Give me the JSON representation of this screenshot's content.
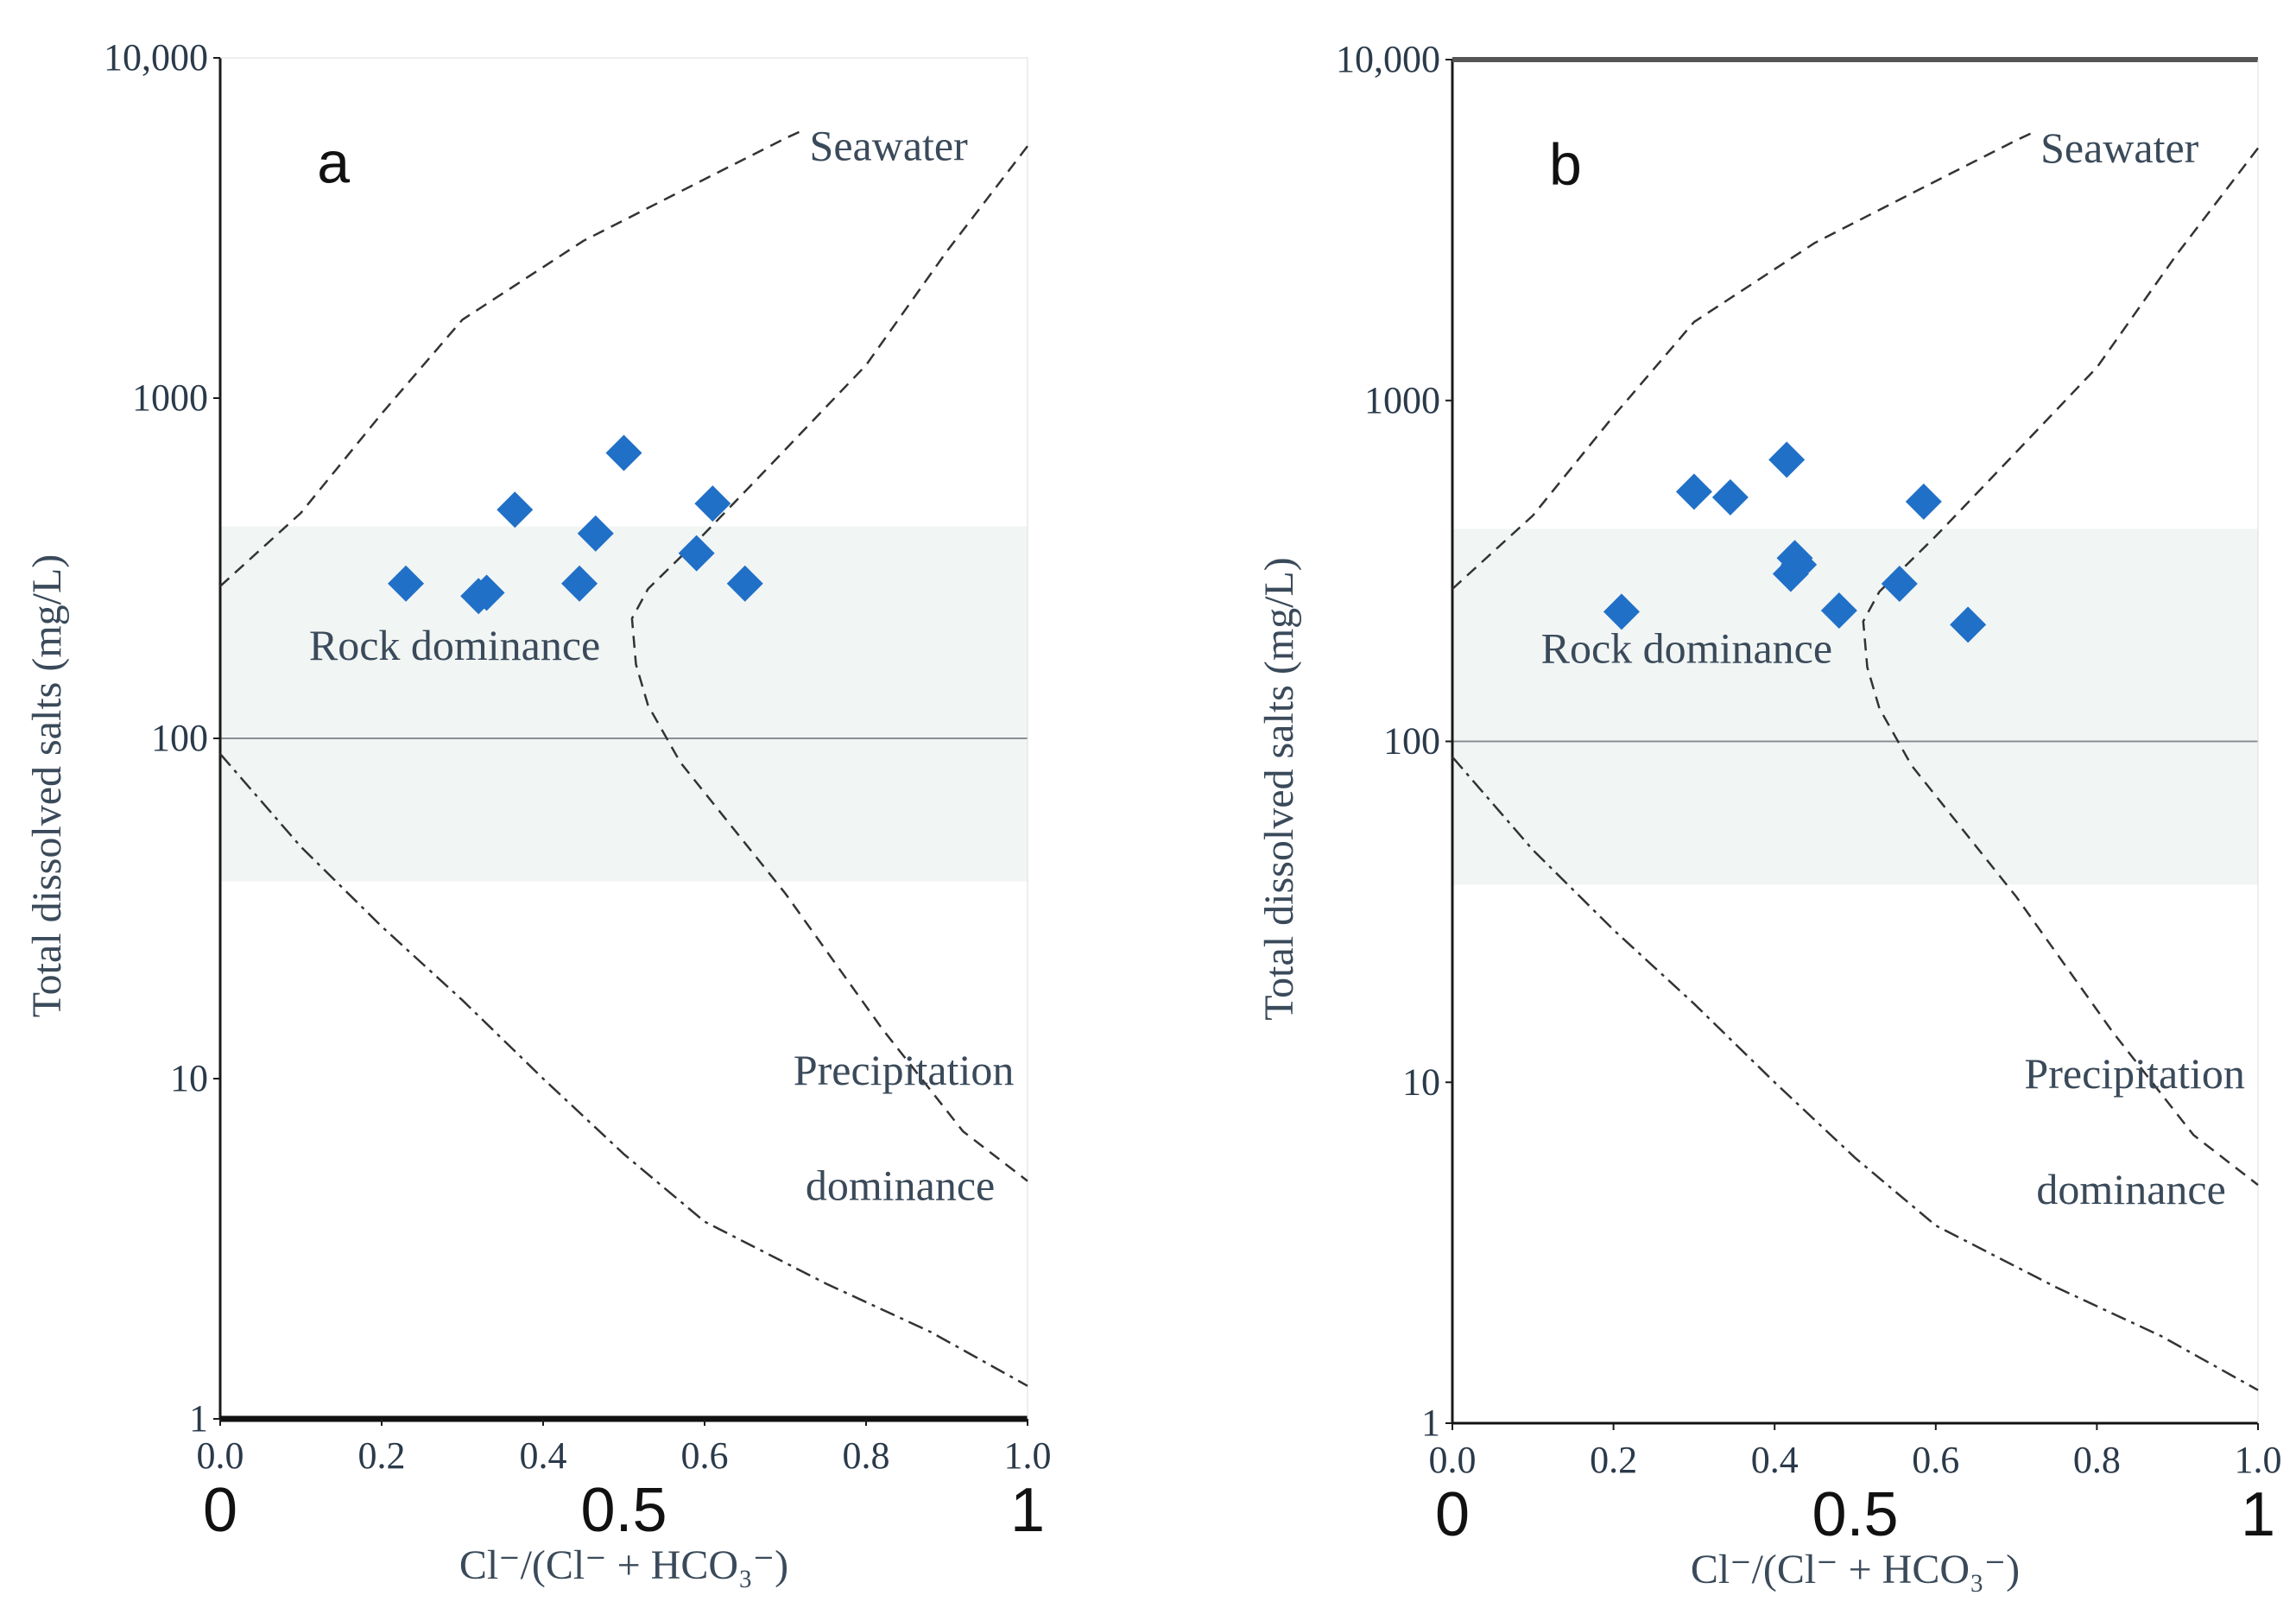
{
  "chart_data": [
    {
      "type": "scatter",
      "panel_label": "a",
      "xlabel": "Cl⁻/(Cl⁻ + HCO₃⁻)",
      "ylabel": "Total dissolved salts (mg/L)",
      "xlim": [
        0,
        1
      ],
      "ylim": [
        1,
        10000
      ],
      "yscale": "log",
      "x_ticks": [
        "0.0",
        "0.2",
        "0.4",
        "0.6",
        "0.8",
        "1.0"
      ],
      "y_ticks": [
        "1",
        "10",
        "100",
        "1000",
        "10,000"
      ],
      "overlay_x_labels": [
        "0",
        "0.5",
        "1"
      ],
      "regions": [
        "Seawater",
        "Rock dominance",
        "Precipitation dominance"
      ],
      "marker_color": "#2070c8",
      "series": [
        {
          "name": "samples",
          "points": [
            {
              "x": 0.23,
              "y": 285
            },
            {
              "x": 0.32,
              "y": 262
            },
            {
              "x": 0.33,
              "y": 268
            },
            {
              "x": 0.365,
              "y": 470
            },
            {
              "x": 0.445,
              "y": 285
            },
            {
              "x": 0.465,
              "y": 400
            },
            {
              "x": 0.5,
              "y": 690
            },
            {
              "x": 0.59,
              "y": 350
            },
            {
              "x": 0.61,
              "y": 490
            },
            {
              "x": 0.65,
              "y": 285
            }
          ]
        }
      ]
    },
    {
      "type": "scatter",
      "panel_label": "b",
      "xlabel": "Cl⁻/(Cl⁻ + HCO₃⁻)",
      "ylabel": "Total dissolved salts (mg/L)",
      "xlim": [
        0,
        1
      ],
      "ylim": [
        1,
        10000
      ],
      "yscale": "log",
      "x_ticks": [
        "0.0",
        "0.2",
        "0.4",
        "0.6",
        "0.8",
        "1.0"
      ],
      "y_ticks": [
        "1",
        "10",
        "100",
        "1000",
        "10,000"
      ],
      "overlay_x_labels": [
        "0",
        "0.5",
        "1"
      ],
      "regions": [
        "Seawater",
        "Rock dominance",
        "Precipitation dominance"
      ],
      "marker_color": "#2070c8",
      "series": [
        {
          "name": "samples",
          "points": [
            {
              "x": 0.21,
              "y": 240
            },
            {
              "x": 0.3,
              "y": 540
            },
            {
              "x": 0.345,
              "y": 520
            },
            {
              "x": 0.415,
              "y": 670
            },
            {
              "x": 0.42,
              "y": 310
            },
            {
              "x": 0.425,
              "y": 345
            },
            {
              "x": 0.43,
              "y": 330
            },
            {
              "x": 0.48,
              "y": 242
            },
            {
              "x": 0.555,
              "y": 290
            },
            {
              "x": 0.585,
              "y": 505
            },
            {
              "x": 0.64,
              "y": 220
            }
          ]
        }
      ]
    }
  ]
}
